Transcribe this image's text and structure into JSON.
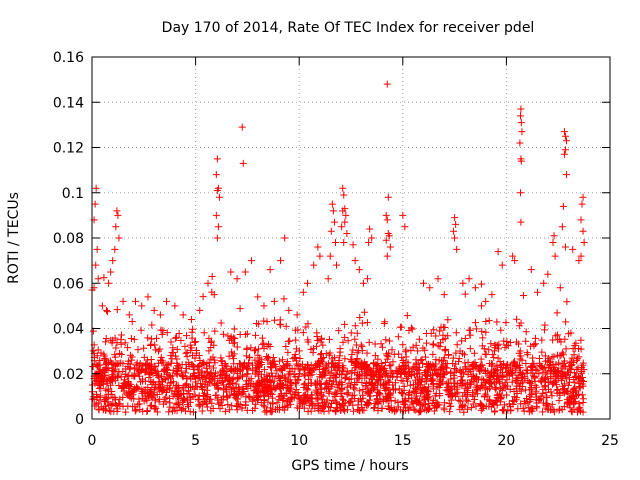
{
  "chart_data": {
    "type": "scatter",
    "title": "Day 170 of 2014, Rate Of TEC Index for receiver pdel",
    "xlabel": "GPS time / hours",
    "ylabel": "ROTI / TECUs",
    "xlim": [
      0,
      25
    ],
    "ylim": [
      0,
      0.16
    ],
    "xticks": [
      "0",
      "5",
      "10",
      "15",
      "20",
      "25"
    ],
    "yticks": [
      "0",
      "0.02",
      "0.04",
      "0.06",
      "0.08",
      "0.1",
      "0.12",
      "0.14",
      "0.16"
    ],
    "grid": true,
    "marker": "+",
    "color": "#ff0000",
    "series": [
      {
        "name": "ROTI",
        "points": [
          [
            14.25,
            0.148
          ],
          [
            20.7,
            0.137
          ],
          [
            20.68,
            0.134
          ],
          [
            20.72,
            0.131
          ],
          [
            20.75,
            0.127
          ],
          [
            20.65,
            0.122
          ],
          [
            20.7,
            0.115
          ],
          [
            20.72,
            0.114
          ],
          [
            20.68,
            0.1
          ],
          [
            20.7,
            0.087
          ],
          [
            22.8,
            0.127
          ],
          [
            22.85,
            0.125
          ],
          [
            22.9,
            0.123
          ],
          [
            22.85,
            0.119
          ],
          [
            22.8,
            0.117
          ],
          [
            22.9,
            0.108
          ],
          [
            22.75,
            0.094
          ],
          [
            22.7,
            0.085
          ],
          [
            22.85,
            0.076
          ],
          [
            7.25,
            0.129
          ],
          [
            7.3,
            0.113
          ],
          [
            6.05,
            0.115
          ],
          [
            6.0,
            0.108
          ],
          [
            6.1,
            0.102
          ],
          [
            6.05,
            0.101
          ],
          [
            6.15,
            0.098
          ],
          [
            6.0,
            0.09
          ],
          [
            6.1,
            0.085
          ],
          [
            6.05,
            0.08
          ],
          [
            0.2,
            0.102
          ],
          [
            0.15,
            0.095
          ],
          [
            0.1,
            0.088
          ],
          [
            0.25,
            0.075
          ],
          [
            0.18,
            0.068
          ],
          [
            0.3,
            0.062
          ],
          [
            0.1,
            0.058
          ],
          [
            1.2,
            0.092
          ],
          [
            1.25,
            0.09
          ],
          [
            1.15,
            0.085
          ],
          [
            1.3,
            0.08
          ],
          [
            1.1,
            0.075
          ],
          [
            1.0,
            0.07
          ],
          [
            0.9,
            0.065
          ],
          [
            0.8,
            0.06
          ],
          [
            12.1,
            0.102
          ],
          [
            12.15,
            0.099
          ],
          [
            12.2,
            0.093
          ],
          [
            12.1,
            0.092
          ],
          [
            12.25,
            0.09
          ],
          [
            12.2,
            0.087
          ],
          [
            12.05,
            0.085
          ],
          [
            12.3,
            0.082
          ],
          [
            12.15,
            0.078
          ],
          [
            11.6,
            0.095
          ],
          [
            11.65,
            0.092
          ],
          [
            11.7,
            0.087
          ],
          [
            11.55,
            0.083
          ],
          [
            11.75,
            0.078
          ],
          [
            11.5,
            0.072
          ],
          [
            11.8,
            0.068
          ],
          [
            11.4,
            0.062
          ],
          [
            14.3,
            0.098
          ],
          [
            14.2,
            0.09
          ],
          [
            14.25,
            0.088
          ],
          [
            14.3,
            0.082
          ],
          [
            14.35,
            0.081
          ],
          [
            14.2,
            0.079
          ],
          [
            14.4,
            0.076
          ],
          [
            14.25,
            0.072
          ],
          [
            13.4,
            0.084
          ],
          [
            13.5,
            0.08
          ],
          [
            13.35,
            0.078
          ],
          [
            15.0,
            0.09
          ],
          [
            15.1,
            0.085
          ],
          [
            17.5,
            0.089
          ],
          [
            17.55,
            0.086
          ],
          [
            17.45,
            0.083
          ],
          [
            17.5,
            0.08
          ],
          [
            17.6,
            0.075
          ],
          [
            17.9,
            0.06
          ],
          [
            18.2,
            0.062
          ],
          [
            18.5,
            0.058
          ],
          [
            19.6,
            0.074
          ],
          [
            19.8,
            0.068
          ],
          [
            20.3,
            0.072
          ],
          [
            20.4,
            0.07
          ],
          [
            21.2,
            0.066
          ],
          [
            21.8,
            0.06
          ],
          [
            22.0,
            0.064
          ],
          [
            22.3,
            0.081
          ],
          [
            22.25,
            0.078
          ],
          [
            22.35,
            0.072
          ],
          [
            23.7,
            0.098
          ],
          [
            23.65,
            0.095
          ],
          [
            23.6,
            0.088
          ],
          [
            23.7,
            0.083
          ],
          [
            23.75,
            0.078
          ],
          [
            23.6,
            0.072
          ],
          [
            23.5,
            0.07
          ],
          [
            23.2,
            0.075
          ],
          [
            9.3,
            0.08
          ],
          [
            9.1,
            0.07
          ],
          [
            8.6,
            0.066
          ],
          [
            7.7,
            0.07
          ],
          [
            7.4,
            0.065
          ],
          [
            7.0,
            0.062
          ],
          [
            6.7,
            0.065
          ],
          [
            5.8,
            0.063
          ],
          [
            5.6,
            0.06
          ],
          [
            5.9,
            0.055
          ],
          [
            10.9,
            0.076
          ],
          [
            11.0,
            0.072
          ],
          [
            10.7,
            0.068
          ],
          [
            10.4,
            0.06
          ],
          [
            10.2,
            0.056
          ],
          [
            12.6,
            0.077
          ],
          [
            12.7,
            0.07
          ],
          [
            12.9,
            0.066
          ],
          [
            13.1,
            0.06
          ],
          [
            13.3,
            0.062
          ],
          [
            16.0,
            0.06
          ],
          [
            16.3,
            0.058
          ],
          [
            16.7,
            0.062
          ],
          [
            17.0,
            0.055
          ],
          [
            2.1,
            0.052
          ],
          [
            2.4,
            0.05
          ],
          [
            2.7,
            0.054
          ],
          [
            3.0,
            0.048
          ],
          [
            3.3,
            0.046
          ],
          [
            3.6,
            0.052
          ],
          [
            4.0,
            0.05
          ],
          [
            4.4,
            0.046
          ],
          [
            4.8,
            0.044
          ],
          [
            5.2,
            0.048
          ],
          [
            8.0,
            0.054
          ],
          [
            8.3,
            0.05
          ],
          [
            8.8,
            0.052
          ],
          [
            9.5,
            0.048
          ],
          [
            9.9,
            0.046
          ],
          [
            19.0,
            0.052
          ],
          [
            19.3,
            0.055
          ],
          [
            18.8,
            0.05
          ],
          [
            21.5,
            0.056
          ],
          [
            22.6,
            0.058
          ],
          [
            0.5,
            0.05
          ],
          [
            0.7,
            0.048
          ],
          [
            1.5,
            0.052
          ],
          [
            1.8,
            0.046
          ]
        ]
      }
    ]
  }
}
